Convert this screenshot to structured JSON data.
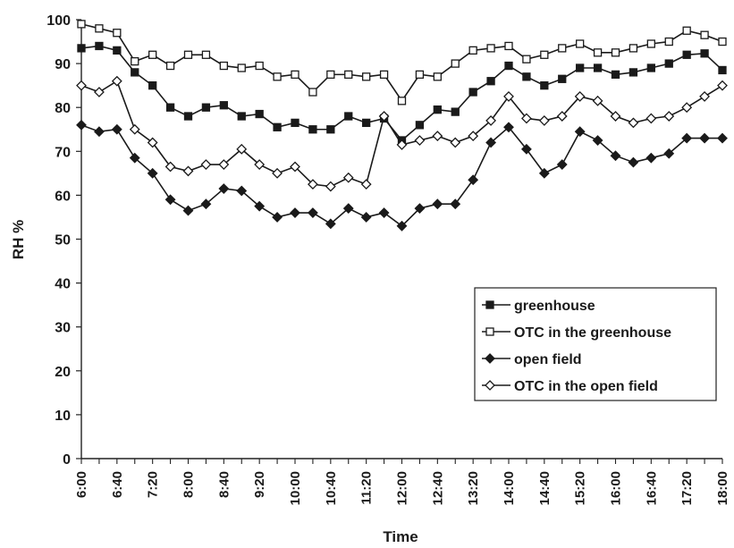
{
  "chart_data": {
    "type": "line",
    "xlabel": "Time",
    "ylabel": "RH %",
    "ylim": [
      0,
      100
    ],
    "yticks": [
      0,
      10,
      20,
      30,
      40,
      50,
      60,
      70,
      80,
      90,
      100
    ],
    "grid": false,
    "legend_position": "bottom-right",
    "x": [
      "6:00",
      "6:20",
      "6:40",
      "7:00",
      "7:20",
      "7:40",
      "8:00",
      "8:20",
      "8:40",
      "9:00",
      "9:20",
      "9:40",
      "10:00",
      "10:20",
      "10:40",
      "11:00",
      "11:20",
      "11:40",
      "12:00",
      "12:20",
      "12:40",
      "13:00",
      "13:20",
      "13:40",
      "14:00",
      "14:20",
      "14:40",
      "15:00",
      "15:20",
      "15:40",
      "16:00",
      "16:20",
      "16:40",
      "17:00",
      "17:20",
      "17:40",
      "18:00"
    ],
    "x_tick_labels": [
      "6:00",
      "6:40",
      "7:20",
      "8:00",
      "8:40",
      "9:20",
      "10:00",
      "10:40",
      "11:20",
      "12:00",
      "12:40",
      "13:20",
      "14:00",
      "14:40",
      "15:20",
      "16:00",
      "16:40",
      "17:20",
      "18:00"
    ],
    "series": [
      {
        "name": "greenhouse",
        "marker": "square-filled",
        "values": [
          93.5,
          94,
          93,
          88,
          85,
          80,
          78,
          80,
          80.5,
          78,
          78.5,
          75.5,
          76.5,
          75,
          75,
          78,
          76.5,
          77.5,
          72.5,
          76,
          79.5,
          79,
          83.5,
          86,
          89.5,
          87,
          85,
          86.5,
          89,
          89,
          87.5,
          88,
          89,
          90,
          92,
          92.3,
          88.5
        ]
      },
      {
        "name": "OTC in the greenhouse",
        "marker": "square-open",
        "values": [
          99,
          98,
          97,
          90.5,
          92,
          89.5,
          92,
          92,
          89.5,
          89,
          89.5,
          87,
          87.5,
          83.5,
          87.5,
          87.5,
          87,
          87.5,
          81.5,
          87.5,
          87,
          90,
          93,
          93.5,
          94,
          91,
          92,
          93.5,
          94.5,
          92.5,
          92.5,
          93.5,
          94.5,
          95,
          97.5,
          96.5,
          95
        ]
      },
      {
        "name": "open field",
        "marker": "diamond-filled",
        "values": [
          76,
          74.5,
          75,
          68.5,
          65,
          59,
          56.5,
          58,
          61.5,
          61,
          57.5,
          55,
          56,
          56,
          53.5,
          57,
          55,
          56,
          53,
          57,
          58,
          58,
          63.5,
          72,
          75.5,
          70.5,
          65,
          67,
          74.5,
          72.5,
          69,
          67.5,
          68.5,
          69.5,
          73,
          73,
          73
        ]
      },
      {
        "name": "OTC in the open field",
        "marker": "diamond-open",
        "values": [
          85,
          83.5,
          86,
          75,
          72,
          66.5,
          65.5,
          67,
          67,
          70.5,
          67,
          65,
          66.5,
          62.5,
          62,
          64,
          62.5,
          78,
          71.5,
          72.5,
          73.5,
          72,
          73.5,
          77,
          82.5,
          77.5,
          77,
          78,
          82.5,
          81.5,
          78,
          76.5,
          77.5,
          78,
          80,
          82.5,
          85
        ]
      }
    ]
  }
}
